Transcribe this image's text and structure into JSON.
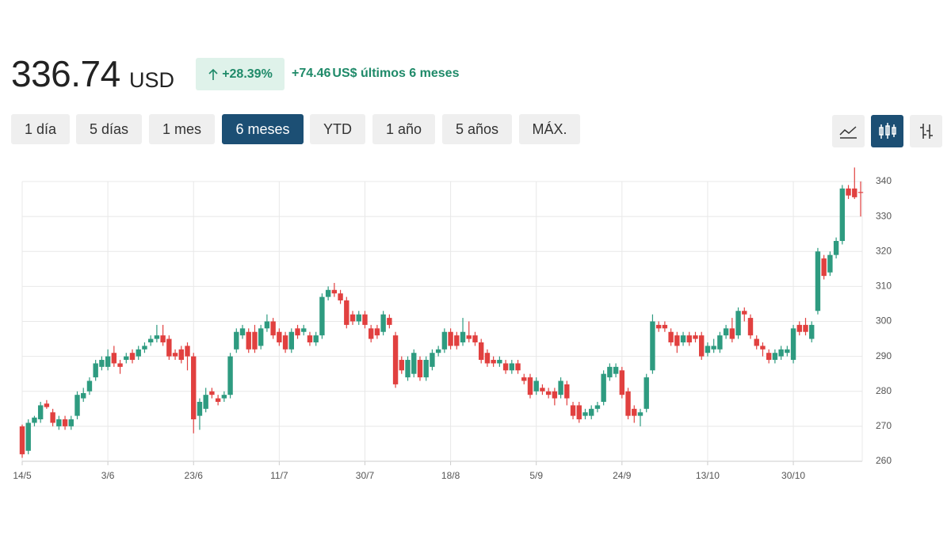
{
  "header": {
    "price": "336.74",
    "currency": "USD",
    "change_pct": "+28.39%",
    "change_abs": "+74.46",
    "change_currency": "US$",
    "period": "últimos 6 meses"
  },
  "ranges": [
    "1 día",
    "5 días",
    "1 mes",
    "6 meses",
    "YTD",
    "1 año",
    "5 años",
    "MÁX."
  ],
  "active_range": 3,
  "chart_data": {
    "type": "candlestick",
    "categories": [
      "14/5",
      null,
      null,
      null,
      null,
      null,
      null,
      null,
      null,
      null,
      null,
      null,
      null,
      null,
      "3/6",
      null,
      null,
      null,
      null,
      null,
      null,
      null,
      null,
      null,
      null,
      null,
      null,
      null,
      "23/6",
      null,
      null,
      null,
      null,
      null,
      null,
      null,
      null,
      null,
      null,
      null,
      null,
      null,
      "11/7",
      null,
      null,
      null,
      null,
      null,
      null,
      null,
      null,
      null,
      null,
      null,
      null,
      null,
      "30/7",
      null,
      null,
      null,
      null,
      null,
      null,
      null,
      null,
      null,
      null,
      null,
      null,
      null,
      "18/8",
      null,
      null,
      null,
      null,
      null,
      null,
      null,
      null,
      null,
      null,
      null,
      null,
      null,
      "5/9",
      null,
      null,
      null,
      null,
      null,
      null,
      null,
      null,
      null,
      null,
      null,
      null,
      null,
      "24/9",
      null,
      null,
      null,
      null,
      null,
      null,
      null,
      null,
      null,
      null,
      null,
      null,
      null,
      "13/10",
      null,
      null,
      null,
      null,
      null,
      null,
      null,
      null,
      null,
      null,
      null,
      null,
      null,
      "30/10",
      null,
      null,
      null,
      null,
      null,
      null,
      null,
      null,
      null,
      null,
      null
    ],
    "ohlc": [
      [
        270,
        270.5,
        261,
        262
      ],
      [
        263,
        272,
        262,
        271
      ],
      [
        271,
        273,
        270,
        272.5
      ],
      [
        272,
        277,
        271,
        276
      ],
      [
        276.5,
        277.5,
        275,
        275.5
      ],
      [
        274,
        275,
        270,
        271
      ],
      [
        270,
        273,
        269,
        272
      ],
      [
        272,
        273,
        269,
        270
      ],
      [
        270,
        273,
        269,
        272
      ],
      [
        273,
        280,
        272,
        279
      ],
      [
        278,
        281,
        277,
        279.5
      ],
      [
        280,
        284,
        279,
        283
      ],
      [
        284,
        289,
        283,
        288
      ],
      [
        287,
        290,
        286,
        289
      ],
      [
        287,
        292,
        286,
        290
      ],
      [
        291,
        293,
        287,
        288
      ],
      [
        288,
        289,
        285,
        287
      ],
      [
        289,
        291,
        288,
        290
      ],
      [
        291,
        292,
        288,
        289
      ],
      [
        290,
        293,
        289,
        292
      ],
      [
        292,
        294,
        291,
        293
      ],
      [
        294,
        296,
        293,
        295
      ],
      [
        295,
        299,
        294,
        296
      ],
      [
        296,
        299,
        293,
        294
      ],
      [
        295,
        296,
        289,
        290
      ],
      [
        291,
        292,
        289,
        290
      ],
      [
        292,
        293,
        288,
        289
      ],
      [
        293,
        294,
        286,
        290
      ],
      [
        290,
        291,
        268,
        272
      ],
      [
        273,
        278,
        269,
        277
      ],
      [
        275,
        281,
        274,
        279
      ],
      [
        280,
        281,
        278,
        279
      ],
      [
        278,
        279,
        276,
        277
      ],
      [
        278,
        280,
        277,
        279
      ],
      [
        279,
        291,
        278,
        290
      ],
      [
        292,
        298,
        291,
        297
      ],
      [
        296,
        299,
        295,
        298
      ],
      [
        297,
        298,
        291,
        292
      ],
      [
        297,
        299,
        291,
        292
      ],
      [
        293,
        299,
        292,
        298
      ],
      [
        298,
        302,
        297,
        300
      ],
      [
        300,
        301,
        295,
        296
      ],
      [
        297,
        298,
        293,
        294
      ],
      [
        296,
        297,
        291,
        292
      ],
      [
        292,
        298,
        291,
        297
      ],
      [
        298,
        299,
        295,
        296
      ],
      [
        297,
        299,
        296,
        298
      ],
      [
        296,
        297,
        293,
        294
      ],
      [
        294,
        297,
        293,
        296
      ],
      [
        296,
        308,
        295,
        307
      ],
      [
        307,
        310,
        306,
        309
      ],
      [
        309,
        311,
        307,
        308
      ],
      [
        308,
        309,
        305,
        306
      ],
      [
        306,
        307,
        298,
        299
      ],
      [
        302,
        303,
        299,
        300
      ],
      [
        300,
        303,
        299,
        302
      ],
      [
        302,
        303,
        298,
        299
      ],
      [
        298,
        299,
        294,
        295
      ],
      [
        298,
        299,
        295,
        296
      ],
      [
        297,
        303,
        296,
        302
      ],
      [
        301,
        302,
        298,
        299
      ],
      [
        296,
        297,
        281,
        282
      ],
      [
        289,
        290,
        285,
        286
      ],
      [
        284,
        290,
        283,
        289
      ],
      [
        285,
        292,
        284,
        291
      ],
      [
        289,
        290,
        283,
        284
      ],
      [
        284,
        290,
        283,
        289
      ],
      [
        287,
        292,
        286,
        291
      ],
      [
        291,
        293,
        290,
        292
      ],
      [
        292,
        298,
        291,
        297
      ],
      [
        297,
        298,
        292,
        293
      ],
      [
        296,
        297,
        292,
        293
      ],
      [
        294,
        301,
        293,
        297
      ],
      [
        296,
        300,
        294,
        295
      ],
      [
        296,
        297,
        293,
        294
      ],
      [
        294,
        295,
        288,
        289
      ],
      [
        291,
        292,
        287,
        288
      ],
      [
        289,
        290,
        287,
        288
      ],
      [
        288,
        290,
        287,
        289
      ],
      [
        288,
        289,
        285,
        286
      ],
      [
        286,
        289,
        285,
        288
      ],
      [
        288,
        289,
        285,
        286
      ],
      [
        284,
        285,
        282,
        283
      ],
      [
        284,
        285,
        278,
        279
      ],
      [
        280,
        284,
        279,
        283
      ],
      [
        281,
        282,
        279,
        280
      ],
      [
        280,
        281,
        278,
        279
      ],
      [
        280,
        281,
        276,
        278
      ],
      [
        279,
        284,
        278,
        283
      ],
      [
        282,
        283,
        276,
        278
      ],
      [
        276,
        277,
        272,
        273
      ],
      [
        276,
        277,
        271,
        272
      ],
      [
        273,
        275,
        272,
        274
      ],
      [
        273,
        276,
        272,
        275
      ],
      [
        275,
        277,
        274,
        276
      ],
      [
        277,
        286,
        276,
        285
      ],
      [
        284,
        288,
        283,
        287
      ],
      [
        285,
        288,
        284,
        287
      ],
      [
        286,
        287,
        278,
        279
      ],
      [
        280,
        281,
        272,
        273
      ],
      [
        275,
        276,
        271,
        273
      ],
      [
        273,
        275,
        270,
        274
      ],
      [
        275,
        285,
        274,
        284
      ],
      [
        286,
        302,
        285,
        300
      ],
      [
        299,
        300,
        297,
        298
      ],
      [
        299,
        300,
        297,
        298
      ],
      [
        297,
        298,
        293,
        294
      ],
      [
        296,
        297,
        291,
        293
      ],
      [
        294,
        297,
        293,
        296
      ],
      [
        296,
        297,
        293,
        294
      ],
      [
        296,
        297,
        294,
        295
      ],
      [
        296,
        297,
        289,
        290
      ],
      [
        291,
        294,
        290,
        293
      ],
      [
        292,
        295,
        291,
        293
      ],
      [
        292,
        297,
        291,
        296
      ],
      [
        296,
        299,
        295,
        298
      ],
      [
        298,
        301,
        294,
        295
      ],
      [
        296,
        304,
        295,
        303
      ],
      [
        303,
        304,
        300,
        302
      ],
      [
        301,
        302,
        295,
        296
      ],
      [
        295,
        296,
        292,
        293
      ],
      [
        293,
        294,
        290,
        292
      ],
      [
        291,
        292,
        288,
        289
      ],
      [
        289,
        292,
        288,
        291
      ],
      [
        290,
        293,
        289,
        292
      ],
      [
        291,
        293,
        290,
        292
      ],
      [
        289,
        299,
        288,
        298
      ],
      [
        299,
        300,
        296,
        297
      ],
      [
        299,
        301,
        296,
        297
      ],
      [
        295,
        300,
        294,
        299
      ],
      [
        303,
        321,
        302,
        320
      ],
      [
        318,
        319,
        312,
        313
      ],
      [
        314,
        320,
        313,
        319
      ],
      [
        319,
        324,
        318,
        323
      ],
      [
        323,
        339,
        322,
        338
      ],
      [
        338,
        339,
        335,
        336
      ],
      [
        338,
        344,
        335,
        335.5
      ],
      [
        337,
        340,
        330,
        336.74
      ]
    ],
    "up_color": "#2e9b80",
    "down_color": "#e1403f",
    "ylim": [
      260,
      340
    ],
    "yticks": [
      260,
      270,
      280,
      290,
      300,
      310,
      320,
      330,
      340
    ],
    "grid": true
  }
}
